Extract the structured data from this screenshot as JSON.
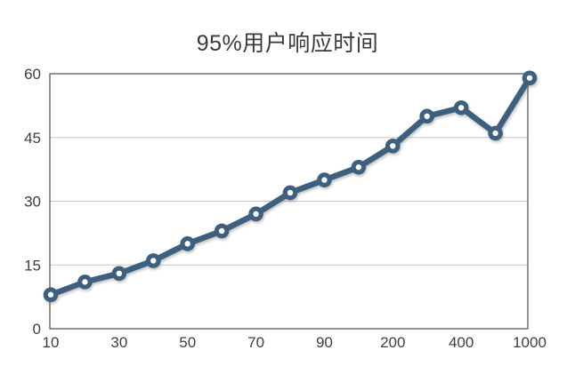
{
  "chart_data": {
    "type": "line",
    "title": "95%用户响应时间",
    "x_tick_labels": [
      "10",
      "",
      "30",
      "",
      "50",
      "",
      "70",
      "",
      "90",
      "",
      "200",
      "",
      "400",
      "",
      "1000"
    ],
    "values": [
      8,
      11,
      13,
      16,
      20,
      23,
      27,
      32,
      35,
      38,
      43,
      50,
      52,
      46,
      59
    ],
    "y_ticks": [
      0,
      15,
      30,
      45,
      60
    ],
    "ylim": [
      0,
      60
    ],
    "xlabel": "",
    "ylabel": "",
    "legend": "none",
    "grid": "horizontal",
    "line_color": "#3E5F7E",
    "marker_style": "circle-white-center",
    "marker_fill": "#ffffff",
    "plot_border_color": "#4d4d4d",
    "gridline_color": "#c6c6c6",
    "label_color": "#3f3f3f",
    "background_color": "#ffffff"
  }
}
